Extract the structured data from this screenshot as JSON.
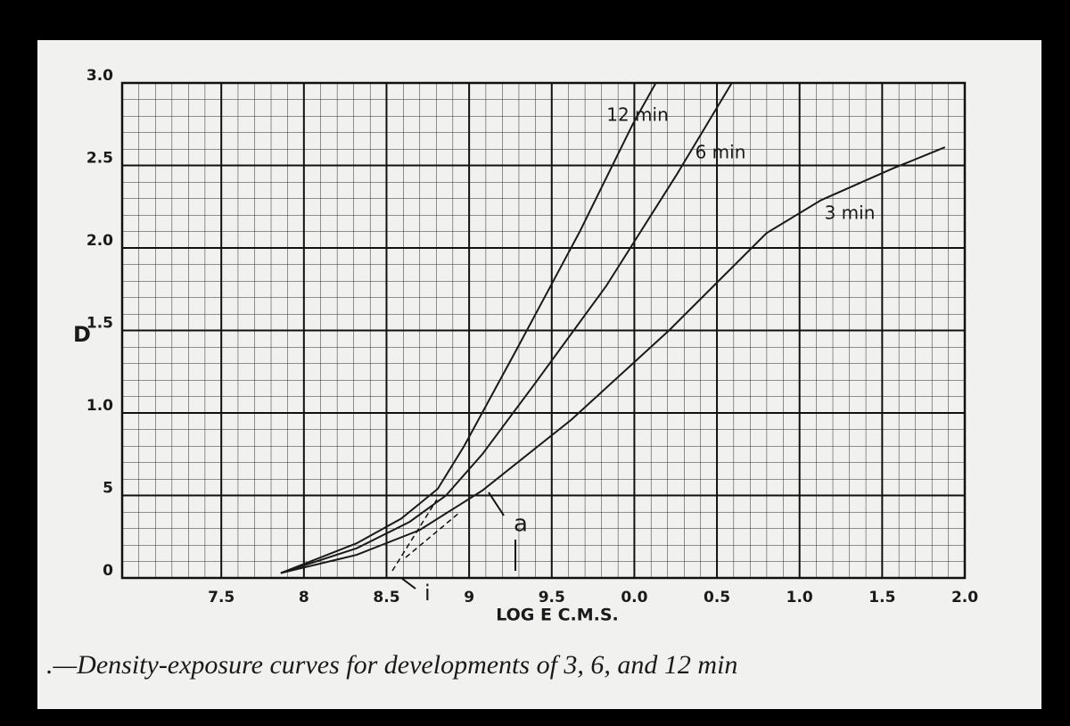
{
  "chart_data": {
    "type": "line",
    "x_label": "LOG E C.M.S.",
    "y_label": "D",
    "caption": ".—Density-exposure curves for developments of 3, 6, and 12 min",
    "annotations": [
      "a",
      "i"
    ],
    "xlim": [
      6.9,
      12.0
    ],
    "ylim": [
      0,
      3.0
    ],
    "xticks": [
      7.5,
      8.0,
      8.5,
      9.0,
      9.5,
      {
        "value": 10.0,
        "label": "0.0"
      },
      {
        "value": 10.5,
        "label": "0.5"
      },
      {
        "value": 11.0,
        "label": "1.0"
      },
      {
        "value": 11.5,
        "label": "1.5"
      },
      {
        "value": 12.0,
        "label": "2.0"
      }
    ],
    "yticks": [
      0,
      {
        "value": 0.5,
        "label": "5"
      },
      {
        "value": 1.0,
        "label": "1.0"
      },
      1.5,
      {
        "value": 2.0,
        "label": "2.0"
      },
      2.5,
      {
        "value": 3.0,
        "label": "3.0"
      }
    ],
    "grid": true,
    "series": [
      {
        "name": "12 min",
        "color": "#1a1a1a",
        "x": [
          7.86,
          8.32,
          8.59,
          8.81,
          8.97,
          9.29,
          9.67,
          9.99,
          10.13
        ],
        "values": [
          0.03,
          0.21,
          0.36,
          0.54,
          0.8,
          1.39,
          2.1,
          2.75,
          3.0
        ]
      },
      {
        "name": "6 min",
        "color": "#1a1a1a",
        "x": [
          7.86,
          8.32,
          8.64,
          8.86,
          9.08,
          9.4,
          9.83,
          10.26,
          10.59
        ],
        "values": [
          0.03,
          0.18,
          0.34,
          0.5,
          0.75,
          1.18,
          1.77,
          2.45,
          3.0
        ]
      },
      {
        "name": "3 min",
        "color": "#1a1a1a",
        "x": [
          7.86,
          8.32,
          8.7,
          9.08,
          9.62,
          10.21,
          10.8,
          11.13,
          11.56,
          11.88
        ],
        "values": [
          0.03,
          0.14,
          0.29,
          0.53,
          0.96,
          1.5,
          2.09,
          2.29,
          2.48,
          2.61
        ]
      }
    ]
  }
}
